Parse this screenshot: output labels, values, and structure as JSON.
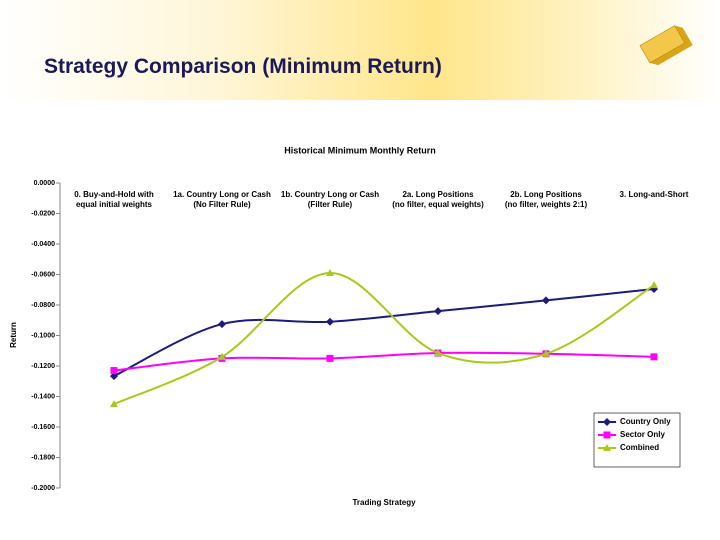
{
  "slide_title": "Strategy Comparison (Minimum Return)",
  "chart_data": {
    "type": "line",
    "title": "Historical Minimum Monthly Return",
    "x_label": "Trading Strategy",
    "y_label": "Return",
    "categories": [
      "0. Buy-and-Hold with\nequal initial weights",
      "1a. Country Long or Cash\n(No Filter Rule)",
      "1b. Country Long or Cash\n(Filter Rule)",
      "2a. Long Positions\n(no filter, equal weights)",
      "2b. Long Positions\n(no filter, weights 2:1)",
      "3. Long-and-Short"
    ],
    "series": [
      {
        "name": "Country Only",
        "color": "#1c1c78",
        "marker": "diamond",
        "values": [
          -0.1266,
          -0.0925,
          -0.091,
          -0.084,
          -0.077,
          -0.0695
        ]
      },
      {
        "name": "Sector Only",
        "color": "#ff00ff",
        "marker": "square",
        "values": [
          -0.123,
          -0.115,
          -0.115,
          -0.1115,
          -0.112,
          -0.114
        ]
      },
      {
        "name": "Combined",
        "color": "#a8c81c",
        "marker": "triangle",
        "values": [
          -0.145,
          -0.114,
          -0.059,
          -0.1115,
          -0.112,
          -0.067
        ]
      }
    ],
    "ylim": [
      -0.2,
      0
    ],
    "yticks": [
      {
        "value": 0,
        "label": "0.0000"
      },
      {
        "value": -0.02,
        "label": "-0.0200"
      },
      {
        "value": -0.04,
        "label": "-0.0400"
      },
      {
        "value": -0.06,
        "label": "-0.0600"
      },
      {
        "value": -0.08,
        "label": "-0.0800"
      },
      {
        "value": -0.1,
        "label": "-0.1000"
      },
      {
        "value": -0.12,
        "label": "-0.1200"
      },
      {
        "value": -0.14,
        "label": "-0.1400"
      },
      {
        "value": -0.16,
        "label": "-0.1600"
      },
      {
        "value": -0.18,
        "label": "-0.1800"
      },
      {
        "value": -0.2,
        "label": "-0.2000"
      }
    ],
    "smooth": true,
    "legend": "lower right"
  }
}
